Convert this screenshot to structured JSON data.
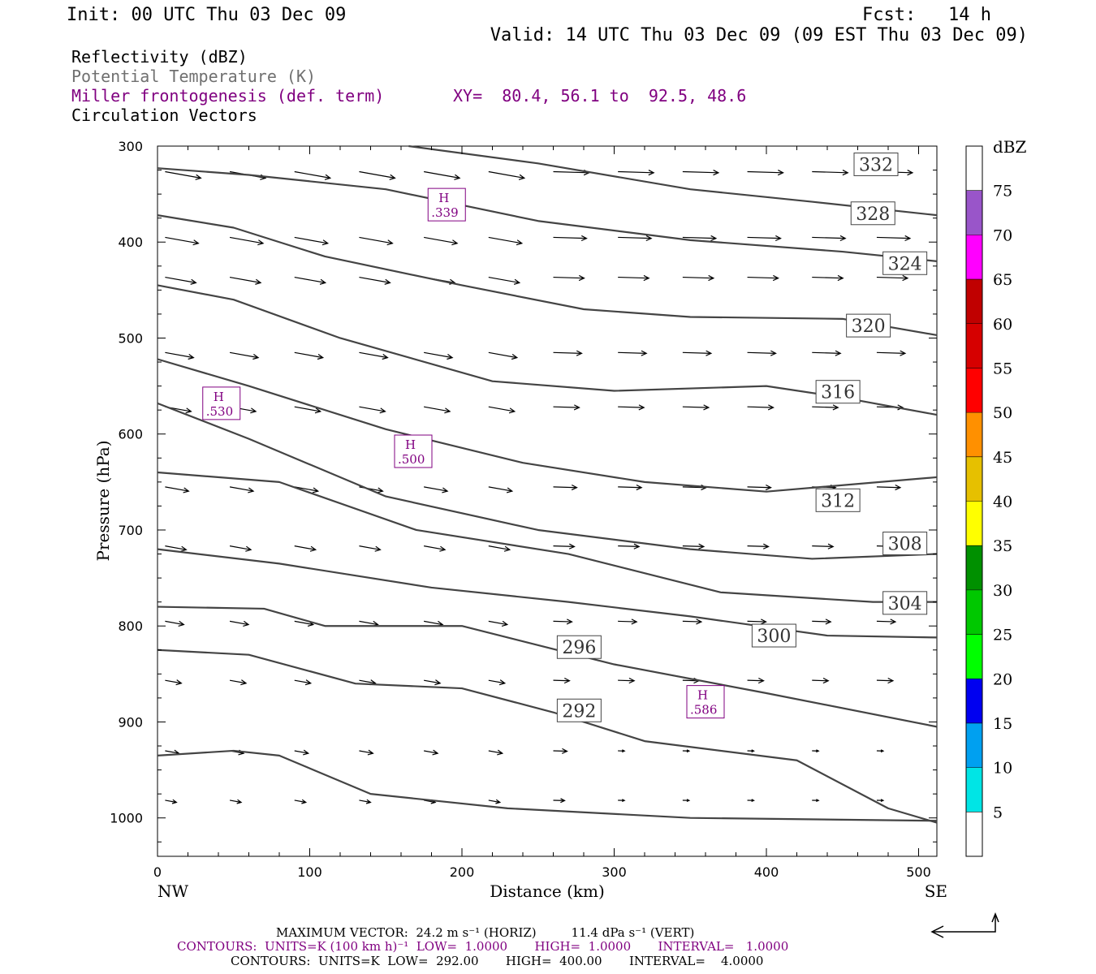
{
  "header": {
    "init": "Init: 00 UTC Thu 03 Dec 09",
    "fcst": "Fcst:   14 h",
    "valid": "Valid: 14 UTC Thu 03 Dec 09 (09 EST Thu 03 Dec 09)",
    "fields": [
      {
        "label": "Reflectivity (dBZ)",
        "color": "#000000"
      },
      {
        "label": "Potential Temperature (K)",
        "color": "#707070"
      },
      {
        "label": "Miller frontogenesis (def. term)",
        "color": "#800080"
      },
      {
        "label": "Circulation Vectors",
        "color": "#000000"
      }
    ],
    "xy": "XY=  80.4, 56.1 to  92.5, 48.6"
  },
  "chart_data": {
    "type": "line",
    "xlabel": "Distance (km)",
    "ylabel": "Pressure (hPa)",
    "xlim": [
      0,
      512
    ],
    "ylim": [
      1040,
      300
    ],
    "xticks": [
      0,
      100,
      200,
      300,
      400,
      500
    ],
    "yticks": [
      300,
      400,
      500,
      600,
      700,
      800,
      900,
      1000
    ],
    "x_left_label": "NW",
    "x_right_label": "SE",
    "theta_contours": [
      {
        "value": 332,
        "label_at": [
          472,
          319
        ],
        "points": [
          [
            165,
            300
          ],
          [
            250,
            318
          ],
          [
            350,
            345
          ],
          [
            430,
            358
          ],
          [
            512,
            372
          ]
        ]
      },
      {
        "value": 328,
        "label_at": [
          470,
          370
        ],
        "points": [
          [
            0,
            323
          ],
          [
            60,
            330
          ],
          [
            150,
            345
          ],
          [
            250,
            378
          ],
          [
            350,
            398
          ],
          [
            450,
            410
          ],
          [
            512,
            420
          ]
        ]
      },
      {
        "value": 324,
        "label_at": [
          491,
          422
        ],
        "points": [
          [
            0,
            372
          ],
          [
            50,
            385
          ],
          [
            110,
            415
          ],
          [
            200,
            445
          ],
          [
            280,
            470
          ],
          [
            350,
            478
          ],
          [
            450,
            480
          ],
          [
            512,
            497
          ]
        ]
      },
      {
        "value": 320,
        "label_at": [
          467,
          487
        ],
        "points": [
          [
            0,
            445
          ],
          [
            50,
            460
          ],
          [
            120,
            500
          ],
          [
            220,
            545
          ],
          [
            300,
            555
          ],
          [
            400,
            550
          ],
          [
            450,
            562
          ],
          [
            512,
            580
          ]
        ]
      },
      {
        "value": 316,
        "label_at": [
          447,
          556
        ],
        "points": [
          [
            0,
            522
          ],
          [
            60,
            550
          ],
          [
            150,
            595
          ],
          [
            240,
            630
          ],
          [
            320,
            650
          ],
          [
            400,
            660
          ],
          [
            512,
            645
          ]
        ]
      },
      {
        "value": 312,
        "label_at": [
          447,
          669
        ],
        "points": [
          [
            0,
            568
          ],
          [
            60,
            605
          ],
          [
            150,
            665
          ],
          [
            250,
            700
          ],
          [
            350,
            720
          ],
          [
            430,
            730
          ],
          [
            512,
            725
          ]
        ]
      },
      {
        "value": 308,
        "label_at": [
          491,
          714
        ],
        "points": [
          [
            0,
            640
          ],
          [
            80,
            650
          ],
          [
            170,
            700
          ],
          [
            270,
            725
          ],
          [
            370,
            765
          ],
          [
            470,
            775
          ],
          [
            512,
            775
          ]
        ]
      },
      {
        "value": 304,
        "label_at": [
          491,
          776
        ],
        "points": [
          [
            0,
            720
          ],
          [
            80,
            735
          ],
          [
            180,
            760
          ],
          [
            270,
            775
          ],
          [
            350,
            790
          ],
          [
            440,
            810
          ],
          [
            512,
            812
          ]
        ]
      },
      {
        "value": 300,
        "label_at": [
          405,
          810
        ],
        "points": [
          [
            0,
            780
          ],
          [
            70,
            782
          ],
          [
            110,
            800
          ],
          [
            200,
            800
          ],
          [
            300,
            840
          ],
          [
            400,
            870
          ],
          [
            512,
            905
          ]
        ]
      },
      {
        "value": 296,
        "label_at": [
          277,
          822
        ],
        "points": [
          [
            0,
            825
          ],
          [
            60,
            830
          ],
          [
            130,
            860
          ],
          [
            200,
            865
          ],
          [
            260,
            890
          ],
          [
            320,
            920
          ],
          [
            420,
            940
          ],
          [
            480,
            990
          ],
          [
            512,
            1005
          ]
        ]
      },
      {
        "value": 292,
        "label_at": [
          277,
          888
        ],
        "points": [
          [
            0,
            935
          ],
          [
            50,
            930
          ],
          [
            80,
            935
          ],
          [
            140,
            975
          ],
          [
            230,
            990
          ],
          [
            350,
            1000
          ],
          [
            512,
            1003
          ]
        ]
      }
    ],
    "frontogenesis_maxima": [
      {
        "label": "H",
        "value": ".339",
        "at": [
          190,
          361
        ]
      },
      {
        "label": "H",
        "value": ".530",
        "at": [
          42,
          568
        ]
      },
      {
        "label": "H",
        "value": ".500",
        "at": [
          168,
          618
        ]
      },
      {
        "label": "H",
        "value": ".586",
        "at": [
          360,
          879
        ]
      }
    ],
    "colorbar": {
      "title": "dBZ",
      "labels": [
        5,
        10,
        15,
        20,
        25,
        30,
        35,
        40,
        45,
        50,
        55,
        60,
        65,
        70,
        75
      ],
      "colors": [
        "#ffffff",
        "#00e5e5",
        "#00a0f0",
        "#0000f0",
        "#00ff00",
        "#00c800",
        "#009000",
        "#ffff00",
        "#e6c000",
        "#ff9000",
        "#ff0000",
        "#d60000",
        "#c00000",
        "#ff00ff",
        "#9955c9",
        "#ffffff"
      ]
    }
  },
  "footer": {
    "line1": "MAXIMUM VECTOR:  24.2 m s⁻¹ (HORIZ)         11.4 dPa s⁻¹ (VERT)",
    "line2": "CONTOURS:  UNITS=K (100 km h)⁻¹  LOW=  1.0000       HIGH=  1.0000       INTERVAL=   1.0000",
    "line3": "CONTOURS:  UNITS=K  LOW=  292.00       HIGH=  400.00       INTERVAL=    4.0000"
  }
}
